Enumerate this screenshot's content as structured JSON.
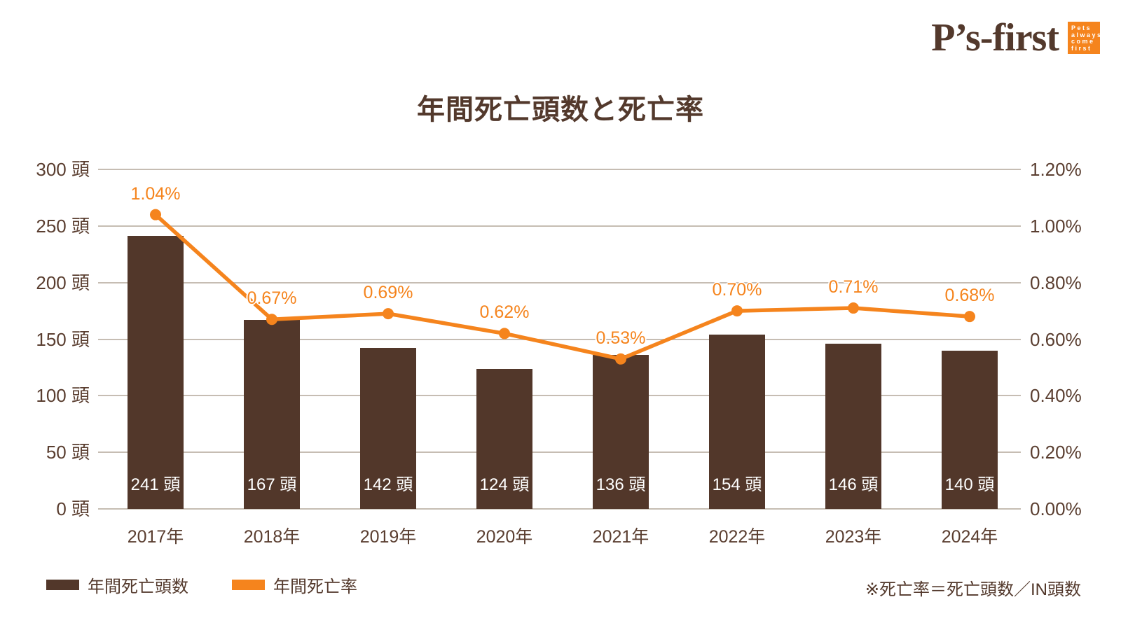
{
  "logo": {
    "text": "P’s-first",
    "badge_lines": [
      "Pets",
      "always",
      "come",
      "first"
    ]
  },
  "title": "年間死亡頭数と死亡率",
  "legend": {
    "bar_label": "年間死亡頭数",
    "line_label": "年間死亡率"
  },
  "note": "※死亡率＝死亡頭数／IN頭数",
  "colors": {
    "bar": "#52372A",
    "line": "#F5841D",
    "grid": "#C6BDB3",
    "text": "#5A3E30",
    "bar_value_text": "#FFFFFF",
    "logo_brown": "#53392C",
    "badge_orange": "#F5841D"
  },
  "chart_data": {
    "type": "bar",
    "title": "年間死亡頭数と死亡率",
    "categories": [
      "2017年",
      "2018年",
      "2019年",
      "2020年",
      "2021年",
      "2022年",
      "2023年",
      "2024年"
    ],
    "series": [
      {
        "name": "年間死亡頭数",
        "type": "bar",
        "axis": "left",
        "unit": "頭",
        "values": [
          241,
          167,
          142,
          124,
          136,
          154,
          146,
          140
        ],
        "data_labels": [
          "241 頭",
          "167 頭",
          "142 頭",
          "124 頭",
          "136 頭",
          "154 頭",
          "146 頭",
          "140 頭"
        ]
      },
      {
        "name": "年間死亡率",
        "type": "line",
        "axis": "right",
        "unit": "%",
        "values": [
          1.04,
          0.67,
          0.69,
          0.62,
          0.53,
          0.7,
          0.71,
          0.68
        ],
        "data_labels": [
          "1.04%",
          "0.67%",
          "0.69%",
          "0.62%",
          "0.53%",
          "0.70%",
          "0.71%",
          "0.68%"
        ]
      }
    ],
    "left_axis": {
      "min": 0,
      "max": 300,
      "step": 50,
      "unit": "頭",
      "tick_labels": [
        "0 頭",
        "50 頭",
        "100 頭",
        "150 頭",
        "200 頭",
        "250 頭",
        "300 頭"
      ]
    },
    "right_axis": {
      "min": 0,
      "max": 1.2,
      "step": 0.2,
      "unit": "%",
      "tick_labels": [
        "0.00%",
        "0.20%",
        "0.40%",
        "0.60%",
        "0.80%",
        "1.00%",
        "1.20%"
      ]
    },
    "grid": true,
    "legend_position": "bottom-left"
  }
}
